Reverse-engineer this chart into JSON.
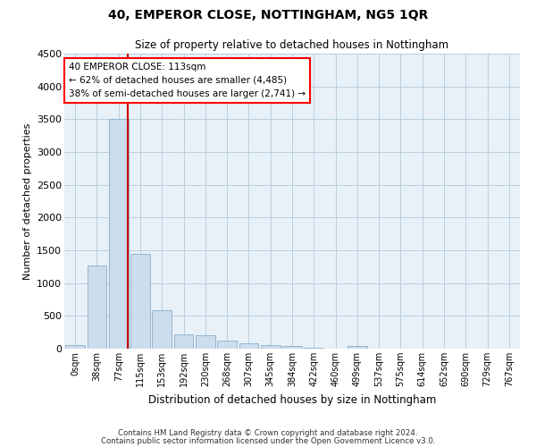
{
  "title": "40, EMPEROR CLOSE, NOTTINGHAM, NG5 1QR",
  "subtitle": "Size of property relative to detached houses in Nottingham",
  "xlabel": "Distribution of detached houses by size in Nottingham",
  "ylabel": "Number of detached properties",
  "bar_color": "#ccdded",
  "bar_edge_color": "#8aafc8",
  "grid_color": "#b8cfe0",
  "background_color": "#e8f0f8",
  "bins": [
    "0sqm",
    "38sqm",
    "77sqm",
    "115sqm",
    "153sqm",
    "192sqm",
    "230sqm",
    "268sqm",
    "307sqm",
    "345sqm",
    "384sqm",
    "422sqm",
    "460sqm",
    "499sqm",
    "537sqm",
    "575sqm",
    "614sqm",
    "652sqm",
    "690sqm",
    "729sqm",
    "767sqm"
  ],
  "values": [
    50,
    1275,
    3500,
    1450,
    580,
    220,
    210,
    120,
    80,
    55,
    40,
    20,
    5,
    40,
    0,
    0,
    0,
    0,
    0,
    0,
    0
  ],
  "annotation_title": "40 EMPEROR CLOSE: 113sqm",
  "annotation_line1": "← 62% of detached houses are smaller (4,485)",
  "annotation_line2": "38% of semi-detached houses are larger (2,741) →",
  "vline_x": 2.43,
  "ylim": [
    0,
    4500
  ],
  "yticks": [
    0,
    500,
    1000,
    1500,
    2000,
    2500,
    3000,
    3500,
    4000,
    4500
  ],
  "footnote1": "Contains HM Land Registry data © Crown copyright and database right 2024.",
  "footnote2": "Contains public sector information licensed under the Open Government Licence v3.0."
}
